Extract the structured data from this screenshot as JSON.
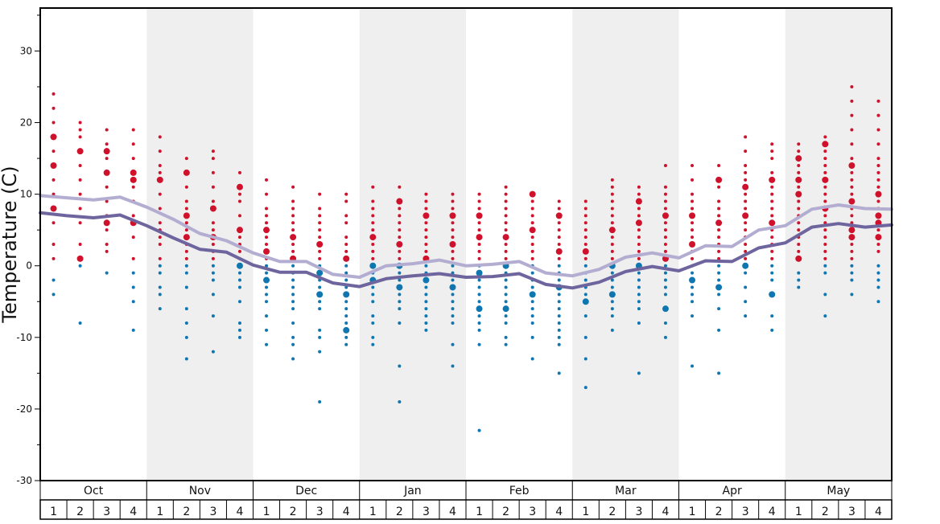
{
  "chart_data": {
    "type": "scatter",
    "title": "",
    "xlabel": "",
    "ylabel": "Temperature (C)",
    "ylim": [
      -30,
      36
    ],
    "y_ticks": [
      30,
      20,
      10,
      0,
      -10,
      -20,
      -30
    ],
    "y_tick_labels": [
      "30",
      "20",
      "10",
      "0",
      "-10",
      "-20",
      "-30"
    ],
    "months": [
      "Oct",
      "Nov",
      "Dec",
      "Jan",
      "Feb",
      "Mar",
      "Apr",
      "May"
    ],
    "weeks": [
      "1",
      "2",
      "3",
      "4"
    ],
    "shaded_months": [
      "Nov",
      "Jan",
      "Mar",
      "May"
    ],
    "grid": false,
    "colors": {
      "warm": "#d0112b",
      "cold": "#0f76b0",
      "upper_line": "#b3aed1",
      "lower_line": "#6f659e",
      "shade": "#efefef"
    },
    "series": [
      {
        "name": "",
        "style": "line",
        "color": "#b3aed1",
        "values": [
          9.8,
          9.5,
          9.2,
          9.6,
          8.2,
          6.5,
          4.5,
          3.5,
          1.8,
          0.6,
          0.6,
          -1.2,
          -1.6,
          0.0,
          0.3,
          0.8,
          0.0,
          0.2,
          0.6,
          -1.0,
          -1.4,
          -0.5,
          1.2,
          1.8,
          1.1,
          2.8,
          2.7,
          5.0,
          5.6,
          7.9,
          8.5,
          8.0,
          7.9
        ]
      },
      {
        "name": "",
        "style": "line",
        "color": "#6f659e",
        "values": [
          7.4,
          7.0,
          6.7,
          7.1,
          5.6,
          3.9,
          2.3,
          1.9,
          0.1,
          -0.9,
          -0.9,
          -2.4,
          -2.9,
          -1.8,
          -1.4,
          -1.1,
          -1.6,
          -1.5,
          -1.1,
          -2.6,
          -3.1,
          -2.3,
          -0.8,
          -0.1,
          -0.7,
          0.7,
          0.6,
          2.5,
          3.2,
          5.4,
          5.9,
          5.4,
          5.7
        ]
      },
      {
        "name": "",
        "style": "dots",
        "points": [
          {
            "w": 0,
            "temps": [
              24,
              22,
              20,
              18,
              16,
              14,
              12,
              10,
              8,
              6,
              3,
              1,
              -2,
              -4
            ],
            "big": [
              18,
              14,
              8
            ]
          },
          {
            "w": 1,
            "temps": [
              20,
              19,
              18,
              16,
              14,
              12,
              10,
              8,
              6,
              3,
              1,
              0,
              -8
            ],
            "big": [
              16,
              1
            ]
          },
          {
            "w": 2,
            "temps": [
              19,
              17,
              16,
              15,
              13,
              11,
              9,
              7,
              6,
              5,
              3,
              2,
              -1
            ],
            "big": [
              16,
              13,
              6
            ]
          },
          {
            "w": 3,
            "temps": [
              19,
              17,
              15,
              13,
              12,
              11,
              9,
              7,
              6,
              4,
              1,
              -1,
              -3,
              -5,
              -9
            ],
            "big": [
              13,
              12,
              6
            ]
          },
          {
            "w": 4,
            "temps": [
              18,
              16,
              14,
              13,
              12,
              10,
              8,
              6,
              5,
              4,
              3,
              1,
              0,
              -1,
              -3,
              -4,
              -6
            ],
            "big": [
              12,
              7
            ]
          },
          {
            "w": 5,
            "temps": [
              15,
              13,
              11,
              9,
              8,
              7,
              6,
              5,
              4,
              3,
              2,
              1,
              0,
              -1,
              -3,
              -6,
              -8,
              -10,
              -13
            ],
            "big": [
              13,
              7,
              4
            ]
          },
          {
            "w": 6,
            "temps": [
              16,
              15,
              13,
              11,
              9,
              8,
              6,
              5,
              4,
              3,
              2,
              1,
              0,
              -1,
              -2,
              -4,
              -7,
              -12
            ],
            "big": [
              8,
              4
            ]
          },
          {
            "w": 7,
            "temps": [
              13,
              11,
              10,
              9,
              7,
              5,
              4,
              3,
              2,
              1,
              0,
              -1,
              -2,
              -3,
              -5,
              -8,
              -9,
              -10
            ],
            "big": [
              11,
              5,
              0
            ]
          },
          {
            "w": 8,
            "temps": [
              12,
              10,
              8,
              7,
              6,
              5,
              4,
              3,
              2,
              1,
              0,
              -1,
              -2,
              -3,
              -4,
              -5,
              -7,
              -9,
              -11
            ],
            "big": [
              5,
              2,
              -2
            ]
          },
          {
            "w": 9,
            "temps": [
              11,
              9,
              8,
              7,
              6,
              5,
              4,
              3,
              2,
              1,
              0,
              -1,
              -2,
              -3,
              -4,
              -5,
              -6,
              -8,
              -10,
              -11,
              -13
            ],
            "big": [
              4,
              1
            ]
          },
          {
            "w": 10,
            "temps": [
              10,
              8,
              7,
              6,
              5,
              4,
              3,
              2,
              1,
              0,
              -1,
              -2,
              -3,
              -4,
              -5,
              -6,
              -9,
              -10,
              -12,
              -19
            ],
            "big": [
              3,
              -1,
              -4
            ]
          },
          {
            "w": 11,
            "temps": [
              10,
              9,
              7,
              6,
              4,
              3,
              2,
              1,
              0,
              -1,
              -2,
              -3,
              -4,
              -5,
              -6,
              -7,
              -8,
              -9,
              -10,
              -11
            ],
            "big": [
              1,
              -4,
              -9
            ]
          },
          {
            "w": 12,
            "temps": [
              11,
              9,
              8,
              7,
              6,
              5,
              4,
              3,
              2,
              1,
              0,
              -1,
              -2,
              -3,
              -4,
              -5,
              -7,
              -8,
              -10,
              -11
            ],
            "big": [
              4,
              0,
              -2
            ]
          },
          {
            "w": 13,
            "temps": [
              11,
              9,
              8,
              7,
              6,
              5,
              4,
              3,
              2,
              1,
              0,
              -1,
              -2,
              -3,
              -4,
              -5,
              -6,
              -8,
              -14,
              -19
            ],
            "big": [
              9,
              3,
              0,
              -3
            ]
          },
          {
            "w": 14,
            "temps": [
              10,
              9,
              8,
              7,
              6,
              5,
              4,
              3,
              2,
              1,
              0,
              -1,
              -2,
              -3,
              -4,
              -5,
              -6,
              -7,
              -8,
              -9
            ],
            "big": [
              7,
              1,
              -2
            ]
          },
          {
            "w": 15,
            "temps": [
              10,
              9,
              8,
              7,
              6,
              5,
              4,
              3,
              2,
              1,
              0,
              -1,
              -2,
              -3,
              -4,
              -5,
              -6,
              -7,
              -8,
              -11,
              -14
            ],
            "big": [
              7,
              3,
              -3
            ]
          },
          {
            "w": 16,
            "temps": [
              10,
              9,
              8,
              7,
              6,
              5,
              4,
              3,
              2,
              1,
              0,
              -1,
              -2,
              -3,
              -4,
              -5,
              -6,
              -7,
              -8,
              -9,
              -11,
              -23
            ],
            "big": [
              7,
              4,
              -1,
              -6
            ]
          },
          {
            "w": 17,
            "temps": [
              11,
              10,
              9,
              8,
              7,
              6,
              5,
              4,
              3,
              2,
              1,
              0,
              -1,
              -2,
              -3,
              -4,
              -5,
              -6,
              -7,
              -8,
              -10,
              -11
            ],
            "big": [
              4,
              0,
              -6
            ]
          },
          {
            "w": 18,
            "temps": [
              10,
              9,
              8,
              7,
              6,
              5,
              4,
              3,
              2,
              1,
              0,
              -1,
              -2,
              -3,
              -4,
              -5,
              -6,
              -7,
              -8,
              -10,
              -13
            ],
            "big": [
              10,
              5,
              -4
            ]
          },
          {
            "w": 19,
            "temps": [
              9,
              8,
              7,
              6,
              5,
              4,
              3,
              2,
              1,
              0,
              -1,
              -2,
              -3,
              -4,
              -5,
              -6,
              -7,
              -8,
              -9,
              -10,
              -11,
              -15
            ],
            "big": [
              7,
              2,
              -3
            ]
          },
          {
            "w": 20,
            "temps": [
              9,
              8,
              7,
              6,
              5,
              4,
              3,
              2,
              1,
              0,
              -1,
              -2,
              -3,
              -4,
              -5,
              -7,
              -10,
              -13,
              -17
            ],
            "big": [
              2,
              -5
            ]
          },
          {
            "w": 21,
            "temps": [
              12,
              11,
              10,
              9,
              8,
              7,
              6,
              5,
              4,
              3,
              2,
              1,
              0,
              -1,
              -2,
              -3,
              -4,
              -5,
              -6,
              -7,
              -9
            ],
            "big": [
              5,
              0,
              -4
            ]
          },
          {
            "w": 22,
            "temps": [
              11,
              10,
              9,
              8,
              7,
              6,
              5,
              4,
              3,
              2,
              1,
              0,
              -1,
              -2,
              -3,
              -4,
              -5,
              -6,
              -8,
              -15
            ],
            "big": [
              9,
              6,
              0
            ]
          },
          {
            "w": 23,
            "temps": [
              14,
              11,
              10,
              9,
              8,
              7,
              6,
              5,
              4,
              3,
              2,
              1,
              0,
              -1,
              -2,
              -3,
              -4,
              -6,
              -8,
              -10
            ],
            "big": [
              7,
              1,
              -6
            ]
          },
          {
            "w": 24,
            "temps": [
              14,
              12,
              10,
              9,
              8,
              7,
              6,
              5,
              4,
              3,
              2,
              1,
              0,
              -1,
              -2,
              -3,
              -4,
              -5,
              -7,
              -14
            ],
            "big": [
              7,
              3,
              -2
            ]
          },
          {
            "w": 25,
            "temps": [
              14,
              12,
              11,
              9,
              8,
              7,
              6,
              5,
              4,
              3,
              2,
              1,
              0,
              -1,
              -2,
              -3,
              -4,
              -6,
              -9,
              -15
            ],
            "big": [
              12,
              6,
              -3
            ]
          },
          {
            "w": 26,
            "temps": [
              18,
              16,
              14,
              13,
              12,
              11,
              10,
              9,
              8,
              7,
              6,
              5,
              4,
              3,
              2,
              1,
              0,
              -1,
              -3,
              -5,
              -7
            ],
            "big": [
              11,
              7,
              0
            ]
          },
          {
            "w": 27,
            "temps": [
              17,
              16,
              15,
              13,
              12,
              11,
              10,
              9,
              8,
              7,
              6,
              5,
              4,
              3,
              2,
              1,
              0,
              -1,
              -2,
              -4,
              -7,
              -9
            ],
            "big": [
              12,
              6,
              -4
            ]
          },
          {
            "w": 28,
            "temps": [
              17,
              16,
              15,
              14,
              13,
              12,
              11,
              10,
              9,
              8,
              7,
              6,
              5,
              4,
              3,
              2,
              1,
              -1,
              -2,
              -3
            ],
            "big": [
              15,
              12,
              10,
              1
            ]
          },
          {
            "w": 29,
            "temps": [
              18,
              17,
              16,
              15,
              14,
              13,
              12,
              11,
              10,
              9,
              8,
              7,
              6,
              5,
              4,
              3,
              2,
              1,
              0,
              -1,
              -4,
              -7
            ],
            "big": [
              17,
              12,
              8
            ]
          },
          {
            "w": 30,
            "temps": [
              25,
              23,
              21,
              19,
              17,
              15,
              14,
              13,
              12,
              11,
              10,
              9,
              8,
              7,
              6,
              5,
              4,
              3,
              2,
              1,
              0,
              -1,
              -2,
              -4
            ],
            "big": [
              14,
              9,
              5,
              4
            ]
          },
          {
            "w": 31,
            "temps": [
              23,
              21,
              19,
              17,
              15,
              14,
              13,
              12,
              11,
              10,
              9,
              8,
              7,
              6,
              5,
              4,
              3,
              2,
              0,
              -1,
              -2,
              -3,
              -5
            ],
            "big": [
              10,
              7,
              6,
              4
            ]
          }
        ]
      }
    ]
  }
}
